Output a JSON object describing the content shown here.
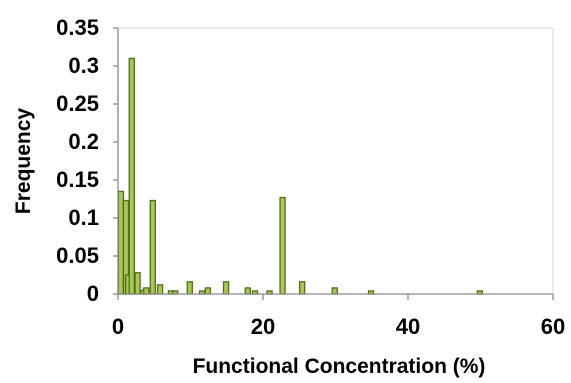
{
  "chart_data": {
    "type": "bar",
    "title": "",
    "xlabel": "Functional Concentration (%)",
    "ylabel": "Frequency",
    "xlim": [
      0,
      60
    ],
    "ylim": [
      0,
      0.35
    ],
    "xticks": [
      0,
      20,
      40,
      60
    ],
    "yticks": [
      0,
      0.05,
      0.1,
      0.15,
      0.2,
      0.25,
      0.3,
      0.35
    ],
    "ytick_labels": [
      "0",
      "0.05",
      "0.1",
      "0.15",
      "0.2",
      "0.25",
      "0.3",
      "0.35"
    ],
    "xtick_labels": [
      "0",
      "20",
      "40",
      "60"
    ],
    "grid": false,
    "legend": null,
    "colors": {
      "bar_fill": "#a7c85a",
      "bar_edge": "#556b16",
      "axis": "#8c8c8c"
    },
    "series": [
      {
        "x": [
          0.4,
          1.1,
          1.4,
          1.9,
          2.7,
          3.5,
          3.9,
          4.8,
          5.8,
          7.3,
          7.9,
          9.9,
          11.6,
          12.4,
          14.9,
          17.9,
          18.9,
          20.9,
          22.7,
          25.4,
          29.9,
          34.9,
          49.9
        ],
        "values": [
          0.135,
          0.123,
          0.025,
          0.31,
          0.028,
          0.005,
          0.008,
          0.123,
          0.012,
          0.004,
          0.004,
          0.016,
          0.004,
          0.008,
          0.016,
          0.008,
          0.004,
          0.004,
          0.127,
          0.016,
          0.008,
          0.004,
          0.004
        ]
      }
    ]
  }
}
